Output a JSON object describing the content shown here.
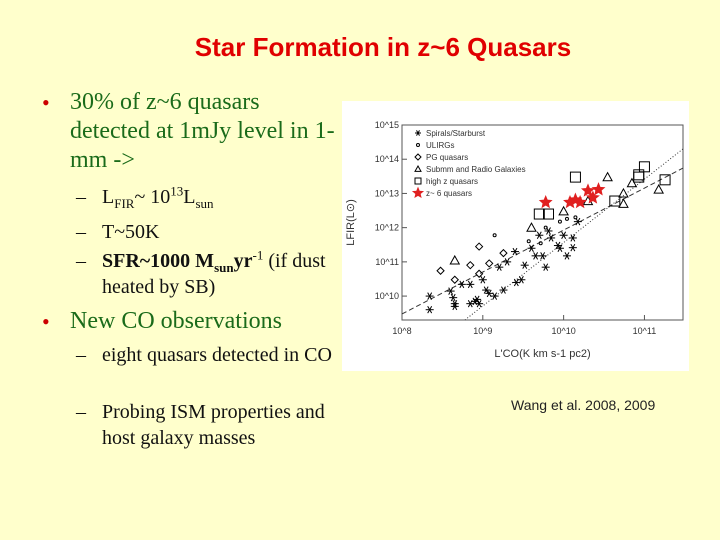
{
  "title": "Star Formation in z~6 Quasars",
  "bullets": [
    {
      "text": "30% of z~6 quasars detected at 1mJy level in 1-mm ->",
      "sub": [
        {
          "pre": "L",
          "sub1": "FIR",
          "mid": "~ 10",
          "sup1": "13",
          "mid2": "L",
          "sub2": "sun"
        },
        {
          "text": "T~50K"
        },
        {
          "bold": "SFR~1000 M",
          "sub1": "sun",
          "bold2": "yr",
          "sup1": "-1",
          "rest": " (if dust heated by SB)"
        }
      ]
    },
    {
      "text": "New CO observations",
      "sub": [
        {
          "text": "eight quasars detected in CO"
        },
        {
          "text": "Probing ISM properties and host galaxy masses"
        }
      ]
    }
  ],
  "bullet_symbol": "•",
  "dash_symbol": "–",
  "credit": "Wang et al. 2008, 2009",
  "chart_data": {
    "type": "scatter",
    "xlabel": "L'CO(K km s-1 pc2)",
    "ylabel": "LFIR(L⊙)",
    "xscale": "log",
    "yscale": "log",
    "xlim": [
      100000000.0,
      300000000000.0
    ],
    "ylim": [
      2000000000.0,
      1000000000000000.0
    ],
    "xticks": [
      {
        "v": 100000000.0,
        "label": "10^8"
      },
      {
        "v": 1000000000.0,
        "label": "10^9"
      },
      {
        "v": 10000000000.0,
        "label": "10^10"
      },
      {
        "v": 100000000000.0,
        "label": "10^11"
      }
    ],
    "yticks": [
      {
        "v": 10000000000.0,
        "label": "10^10"
      },
      {
        "v": 100000000000.0,
        "label": "10^11"
      },
      {
        "v": 1000000000000.0,
        "label": "10^12"
      },
      {
        "v": 10000000000000.0,
        "label": "10^13"
      },
      {
        "v": 100000000000000.0,
        "label": "10^14"
      },
      {
        "v": 1000000000000000.0,
        "label": "10^15"
      }
    ],
    "legend_position": "top-left",
    "series": [
      {
        "name": "Spirals/Starburst",
        "marker": "asterisk",
        "color": "#000000",
        "points": [
          [
            220000000.0,
            10000000000.0
          ],
          [
            220000000.0,
            4000000000.0
          ],
          [
            400000000.0,
            14000000000.0
          ],
          [
            430000000.0,
            9000000000.0
          ],
          [
            450000000.0,
            6000000000.0
          ],
          [
            450000000.0,
            5000000000.0
          ],
          [
            550000000.0,
            22000000000.0
          ],
          [
            700000000.0,
            22000000000.0
          ],
          [
            700000000.0,
            6000000000.0
          ],
          [
            800000000.0,
            7000000000.0
          ],
          [
            850000000.0,
            8000000000.0
          ],
          [
            900000000.0,
            6000000000.0
          ],
          [
            1000000000.0,
            30000000000.0
          ],
          [
            1100000000.0,
            15000000000.0
          ],
          [
            1200000000.0,
            12000000000.0
          ],
          [
            1400000000.0,
            10000000000.0
          ],
          [
            1600000000.0,
            70000000000.0
          ],
          [
            1800000000.0,
            15000000000.0
          ],
          [
            2000000000.0,
            100000000000.0
          ],
          [
            2500000000.0,
            200000000000.0
          ],
          [
            2600000000.0,
            25000000000.0
          ],
          [
            3000000000.0,
            30000000000.0
          ],
          [
            3300000000.0,
            80000000000.0
          ],
          [
            4000000000.0,
            250000000000.0
          ],
          [
            4500000000.0,
            150000000000.0
          ],
          [
            5000000000.0,
            600000000000.0
          ],
          [
            5500000000.0,
            150000000000.0
          ],
          [
            6000000000.0,
            70000000000.0
          ],
          [
            6500000000.0,
            800000000000.0
          ],
          [
            7000000000.0,
            500000000000.0
          ],
          [
            8500000000.0,
            300000000000.0
          ],
          [
            9000000000.0,
            250000000000.0
          ],
          [
            10000000000.0,
            600000000000.0
          ],
          [
            11000000000.0,
            150000000000.0
          ],
          [
            13000000000.0,
            500000000000.0
          ],
          [
            13000000000.0,
            260000000000.0
          ],
          [
            15000000000.0,
            1500000000000.0
          ]
        ]
      },
      {
        "name": "ULIRGs",
        "marker": "circle",
        "color": "#000000",
        "points": [
          [
            1400000000.0,
            600000000000.0
          ],
          [
            3700000000.0,
            400000000000.0
          ],
          [
            5200000000.0,
            350000000000.0
          ],
          [
            6000000000.0,
            1000000000000.0
          ],
          [
            9000000000.0,
            1500000000000.0
          ],
          [
            11000000000.0,
            1800000000000.0
          ],
          [
            14000000000.0,
            2000000000000.0
          ]
        ]
      },
      {
        "name": "PG quasars",
        "marker": "diamond",
        "color": "#000000",
        "points": [
          [
            300000000.0,
            55000000000.0
          ],
          [
            450000000.0,
            30000000000.0
          ],
          [
            700000000.0,
            80000000000.0
          ],
          [
            900000000.0,
            280000000000.0
          ],
          [
            900000000.0,
            45000000000.0
          ],
          [
            1200000000.0,
            90000000000.0
          ],
          [
            1800000000.0,
            180000000000.0
          ]
        ]
      },
      {
        "name": "Submm and Radio Galaxies",
        "marker": "triangle",
        "color": "#000000",
        "points": [
          [
            450000000.0,
            110000000000.0
          ],
          [
            4000000000.0,
            1000000000000.0
          ],
          [
            10000000000.0,
            3000000000000.0
          ],
          [
            20000000000.0,
            6000000000000.0
          ],
          [
            35000000000.0,
            30000000000000.0
          ],
          [
            55000000000.0,
            10000000000000.0
          ],
          [
            55000000000.0,
            5000000000000.0
          ],
          [
            70000000000.0,
            20000000000000.0
          ],
          [
            150000000000.0,
            13000000000000.0
          ]
        ]
      },
      {
        "name": "high z quasars",
        "marker": "square",
        "color": "#000000",
        "points": [
          [
            5000000000.0,
            2500000000000.0
          ],
          [
            6500000000.0,
            2500000000000.0
          ],
          [
            14000000000.0,
            30000000000000.0
          ],
          [
            43000000000.0,
            6000000000000.0
          ],
          [
            85000000000.0,
            30000000000000.0
          ],
          [
            85000000000.0,
            35000000000000.0
          ],
          [
            100000000000.0,
            60000000000000.0
          ],
          [
            180000000000.0,
            25000000000000.0
          ]
        ]
      },
      {
        "name": "z~ 6 quasars",
        "marker": "star",
        "color": "#e02020",
        "points": [
          [
            6000000000.0,
            5500000000000.0
          ],
          [
            12000000000.0,
            5500000000000.0
          ],
          [
            14000000000.0,
            6500000000000.0
          ],
          [
            16000000000.0,
            5500000000000.0
          ],
          [
            20000000000.0,
            12000000000000.0
          ],
          [
            23000000000.0,
            7500000000000.0
          ],
          [
            27000000000.0,
            13000000000000.0
          ]
        ]
      }
    ],
    "fits": [
      {
        "style": "dashed",
        "points": [
          [
            100000000.0,
            3000000000.0
          ],
          [
            300000000000.0,
            55000000000000.0
          ]
        ]
      },
      {
        "style": "dotted",
        "points": [
          [
            600000000.0,
            2000000000.0
          ],
          [
            300000000000.0,
            200000000000000.0
          ]
        ]
      }
    ]
  }
}
